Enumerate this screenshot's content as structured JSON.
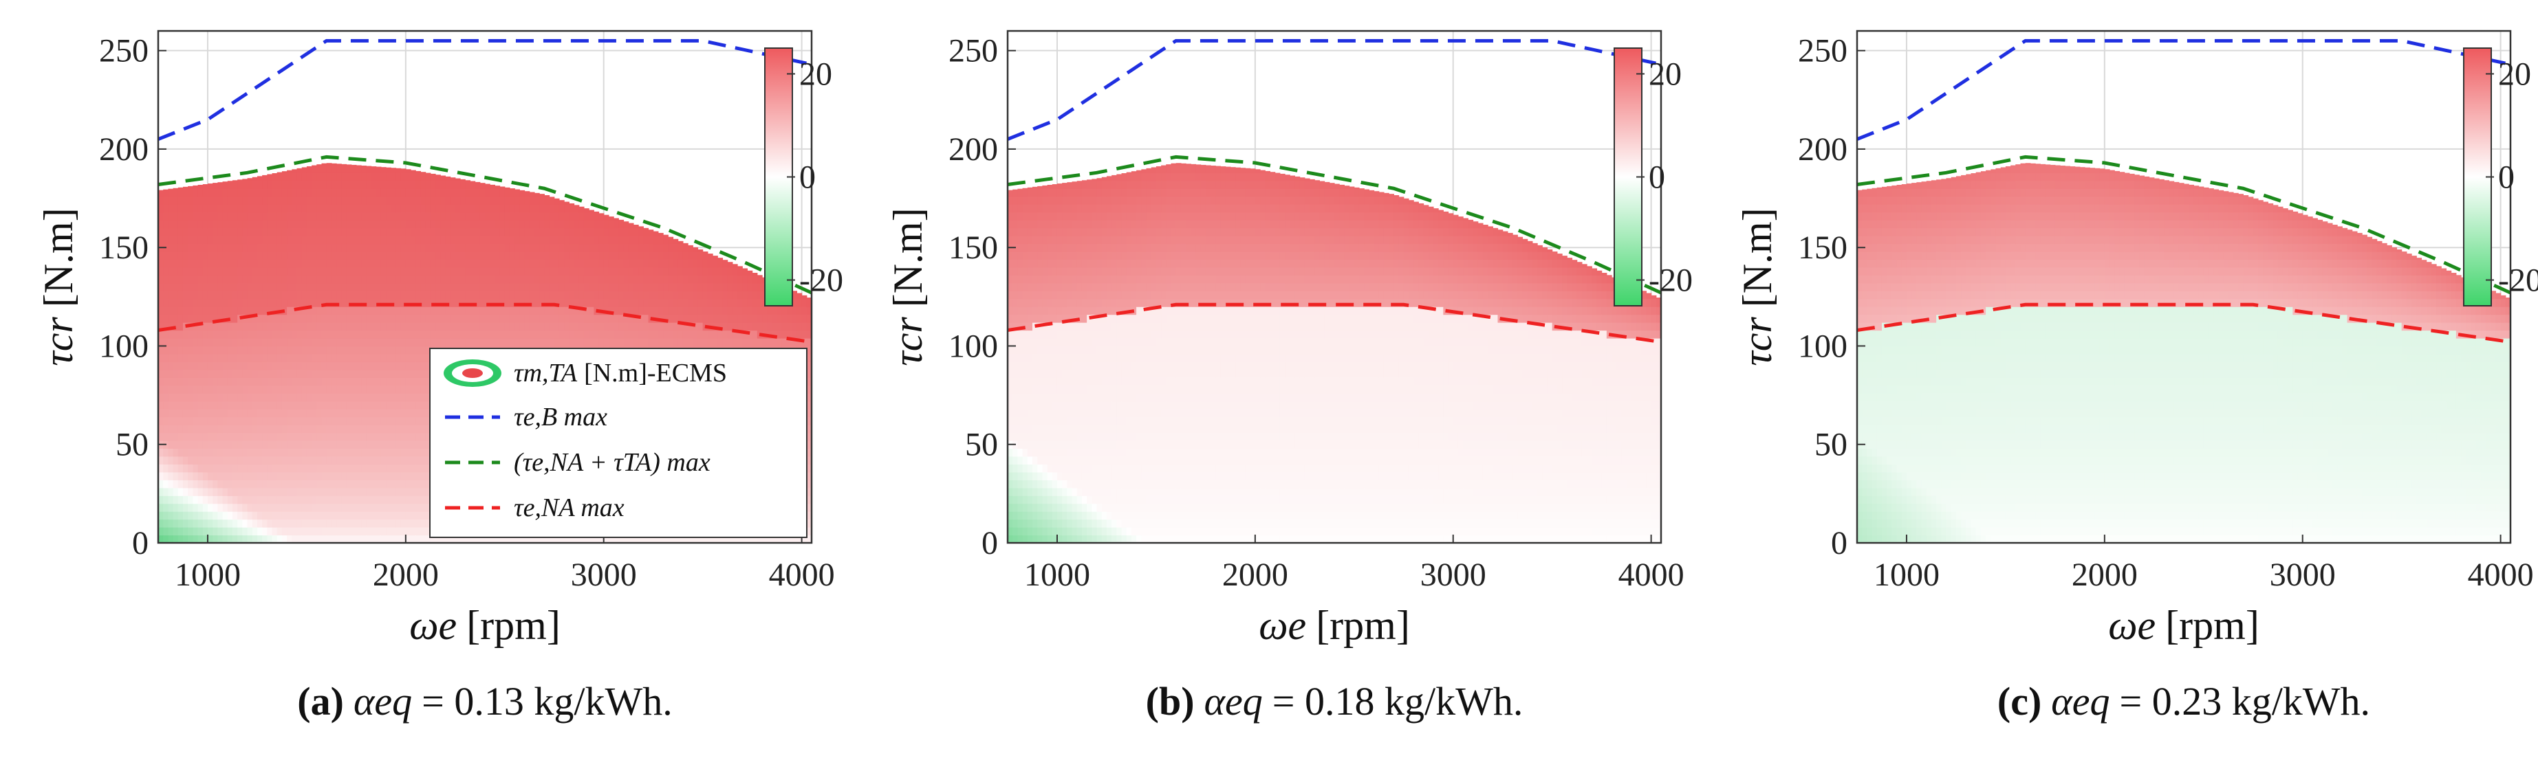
{
  "colors": {
    "pos": "#e8464a",
    "neg": "#27c25a",
    "blue": "#1f2fe0",
    "green": "#1c8a1c",
    "red": "#ee2222",
    "grid": "#d9d9d9"
  },
  "legend": {
    "tm_label_sym": "τm,TA",
    "tm_label_rest": "[N.m]-ECMS",
    "blue_label": "τe,B max",
    "green_label": "(τe,NA + τTA) max",
    "red_label": "τe,NA max"
  },
  "chart_data": [
    {
      "type": "heatmap",
      "panel": "a",
      "caption_letter": "(a)",
      "caption_sym": "αeq",
      "caption_value": "= 0.13 kg/kWh.",
      "xlabel_sym": "ωe",
      "xlabel_unit": "[rpm]",
      "ylabel_sym": "τcr",
      "ylabel_unit": "[N.m]",
      "xlim": [
        750,
        4050
      ],
      "ylim": [
        0,
        260
      ],
      "xticks": [
        1000,
        2000,
        3000,
        4000
      ],
      "yticks": [
        0,
        50,
        100,
        150,
        200,
        250
      ],
      "colorbar": {
        "range": [
          -25,
          25
        ],
        "ticks": [
          20,
          0,
          -20
        ]
      },
      "tau_eB_max": {
        "x": [
          750,
          1000,
          1600,
          3500,
          4050
        ],
        "y": [
          205,
          215,
          255,
          255,
          243
        ]
      },
      "tau_eNA_plus_TA_max": {
        "x": [
          750,
          1200,
          1600,
          2000,
          2700,
          3300,
          3700,
          4050
        ],
        "y": [
          182,
          188,
          196,
          193,
          180,
          160,
          143,
          127
        ]
      },
      "tau_eNA_max": {
        "x": [
          750,
          1600,
          2750,
          4050
        ],
        "y": [
          108,
          121,
          121,
          102
        ]
      },
      "field_profile": {
        "peak": 22,
        "low_torque_green": -14,
        "mid_plateau": 16
      },
      "show_legend": true
    },
    {
      "type": "heatmap",
      "panel": "b",
      "caption_letter": "(b)",
      "caption_sym": "αeq",
      "caption_value": "= 0.18 kg/kWh.",
      "xlabel_sym": "ωe",
      "xlabel_unit": "[rpm]",
      "ylabel_sym": "τcr",
      "ylabel_unit": "[N.m]",
      "xlim": [
        750,
        4050
      ],
      "ylim": [
        0,
        260
      ],
      "xticks": [
        1000,
        2000,
        3000,
        4000
      ],
      "yticks": [
        0,
        50,
        100,
        150,
        200,
        250
      ],
      "colorbar": {
        "range": [
          -25,
          25
        ],
        "ticks": [
          20,
          0,
          -20
        ]
      },
      "tau_eB_max": {
        "x": [
          750,
          1000,
          1600,
          3500,
          4050
        ],
        "y": [
          205,
          215,
          255,
          255,
          243
        ]
      },
      "tau_eNA_plus_TA_max": {
        "x": [
          750,
          1200,
          1600,
          2000,
          2700,
          3300,
          3700,
          4050
        ],
        "y": [
          182,
          188,
          196,
          193,
          180,
          160,
          143,
          127
        ]
      },
      "tau_eNA_max": {
        "x": [
          750,
          1600,
          2750,
          4050
        ],
        "y": [
          108,
          121,
          121,
          102
        ]
      },
      "field_profile": {
        "peak": 20,
        "low_torque_green": -14,
        "mid_plateau": 2
      },
      "show_legend": false
    },
    {
      "type": "heatmap",
      "panel": "c",
      "caption_letter": "(c)",
      "caption_sym": "αeq",
      "caption_value": "= 0.23 kg/kWh.",
      "xlabel_sym": "ωe",
      "xlabel_unit": "[rpm]",
      "ylabel_sym": "τcr",
      "ylabel_unit": "[N.m]",
      "xlim": [
        750,
        4050
      ],
      "ylim": [
        0,
        260
      ],
      "xticks": [
        1000,
        2000,
        3000,
        4000
      ],
      "yticks": [
        0,
        50,
        100,
        150,
        200,
        250
      ],
      "colorbar": {
        "range": [
          -25,
          25
        ],
        "ticks": [
          20,
          0,
          -20
        ]
      },
      "tau_eB_max": {
        "x": [
          750,
          1000,
          1600,
          3500,
          4050
        ],
        "y": [
          205,
          215,
          255,
          255,
          243
        ]
      },
      "tau_eNA_plus_TA_max": {
        "x": [
          750,
          1200,
          1600,
          2000,
          2700,
          3300,
          3700,
          4050
        ],
        "y": [
          182,
          188,
          196,
          193,
          180,
          160,
          143,
          127
        ]
      },
      "tau_eNA_max": {
        "x": [
          750,
          1600,
          2750,
          4050
        ],
        "y": [
          108,
          121,
          121,
          102
        ]
      },
      "field_profile": {
        "peak": 18,
        "low_torque_green": -8,
        "mid_plateau": -3
      },
      "show_legend": false
    }
  ]
}
